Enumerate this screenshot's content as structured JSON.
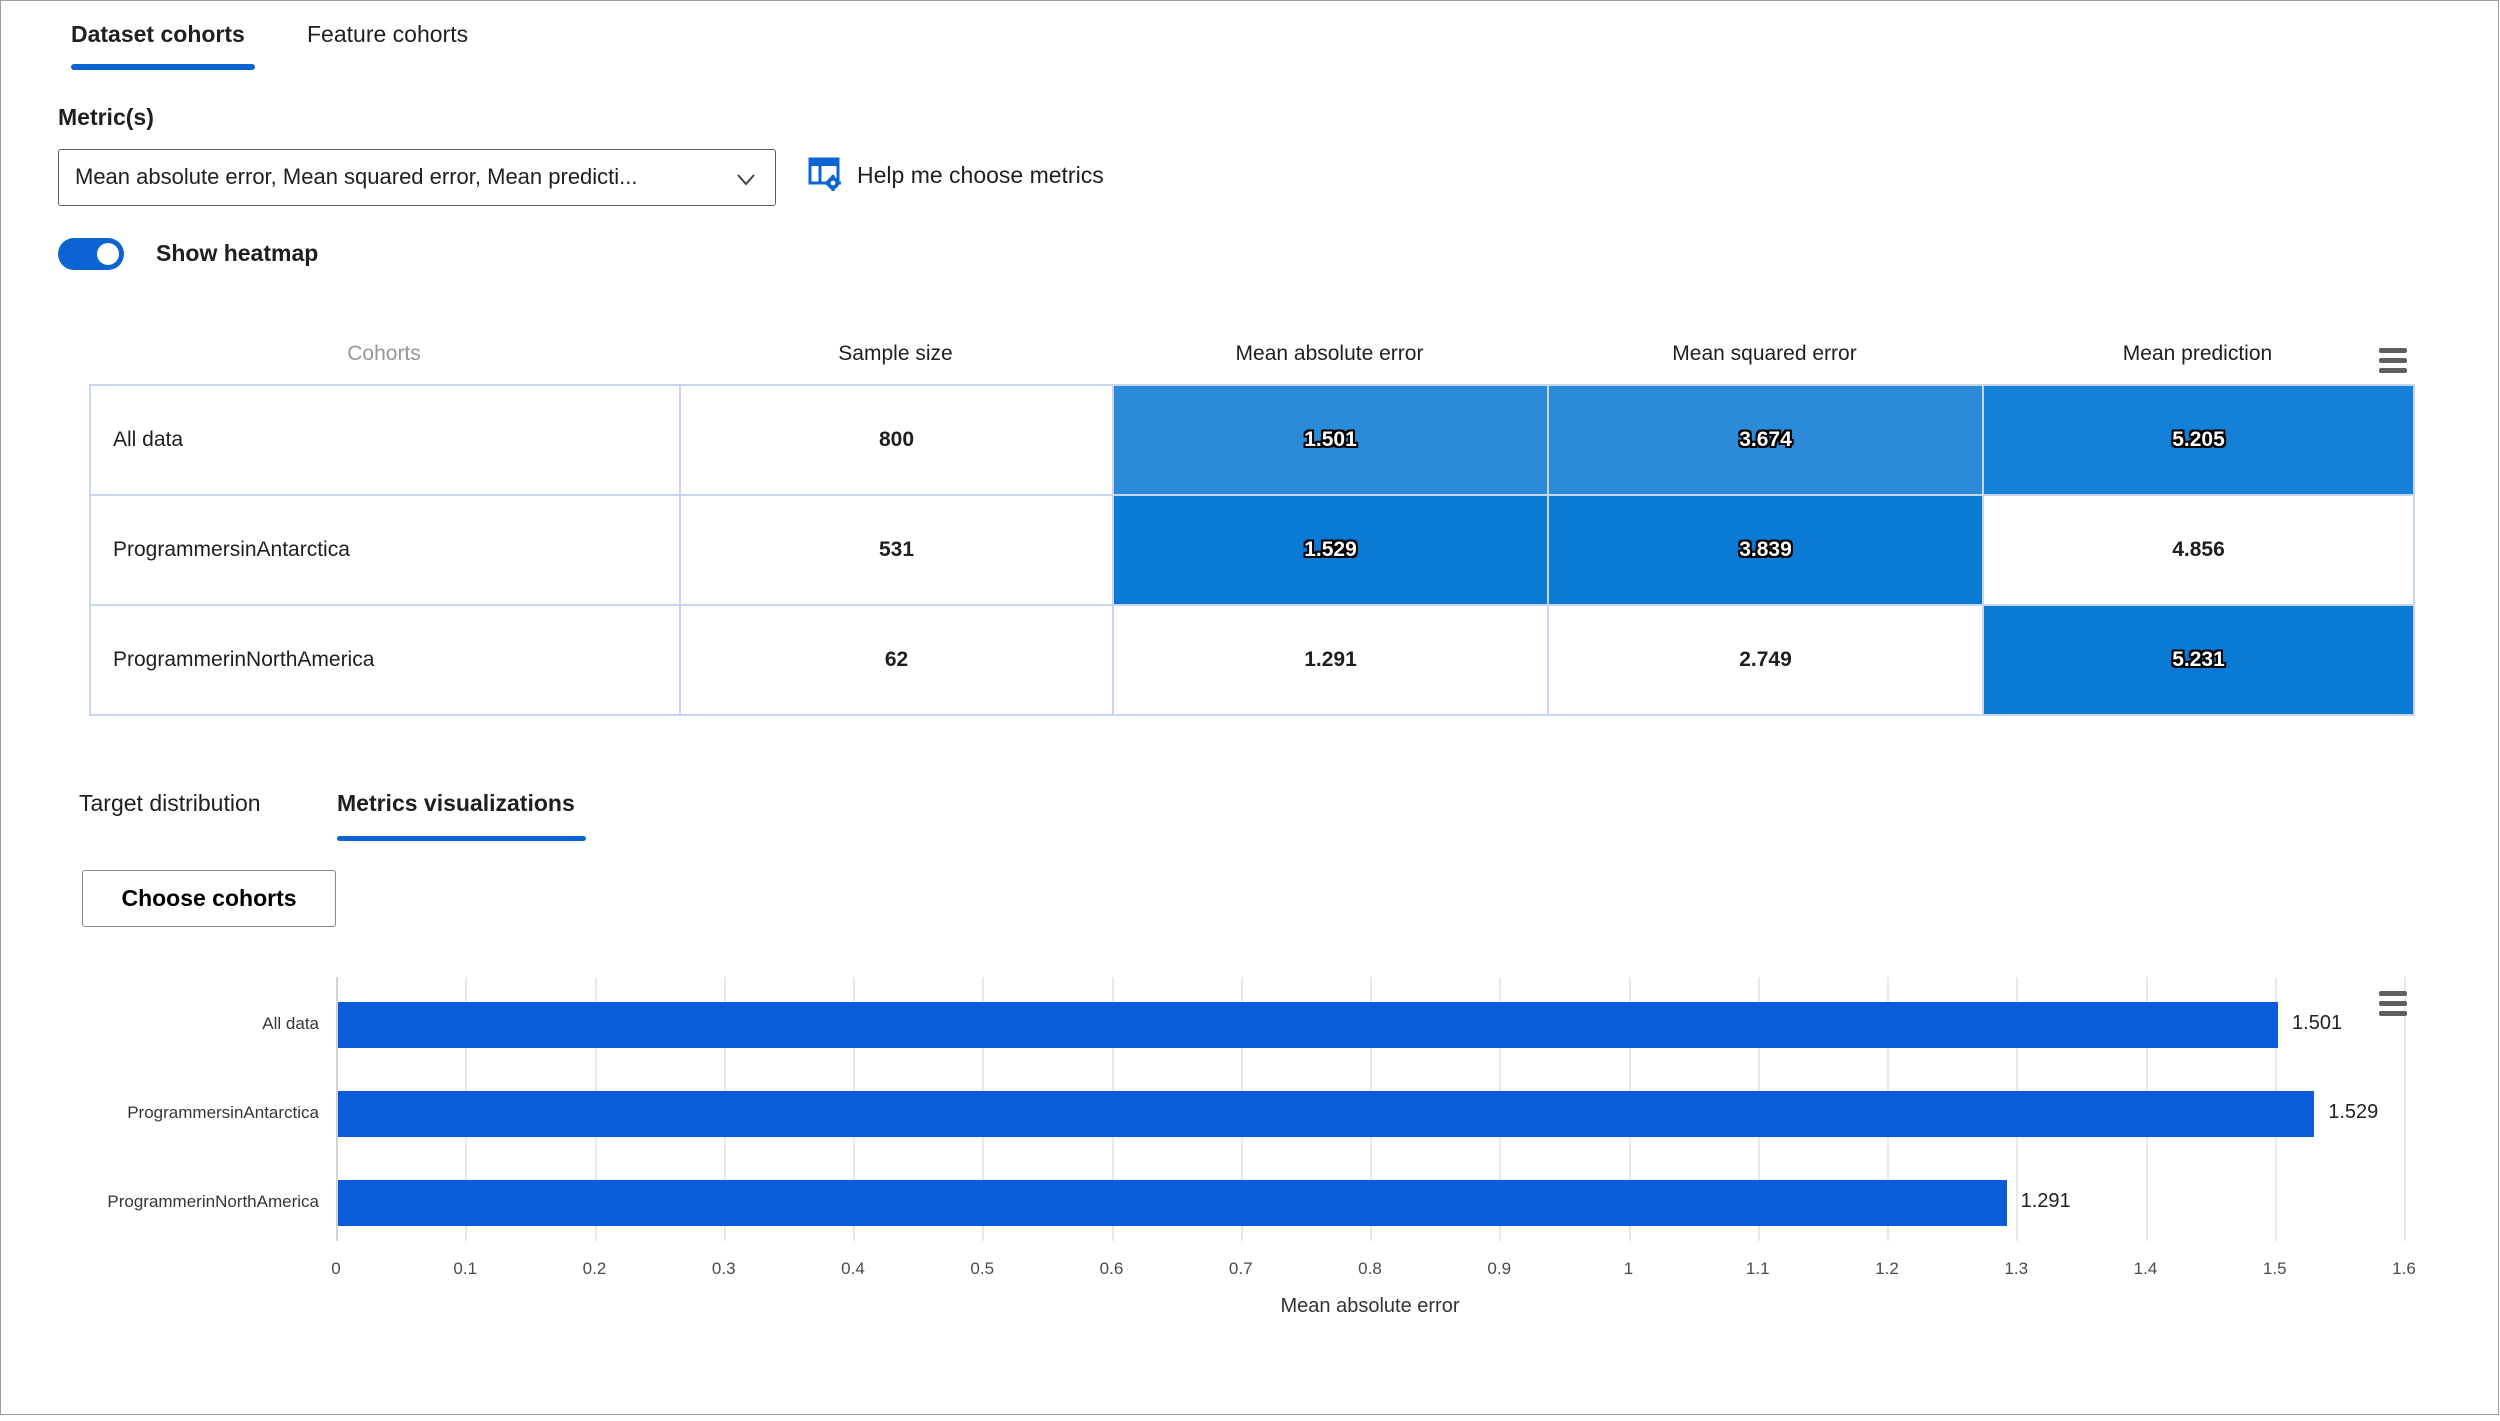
{
  "accent": "#0b64d2",
  "tabs": [
    {
      "label": "Dataset cohorts",
      "active": true
    },
    {
      "label": "Feature cohorts",
      "active": false
    }
  ],
  "metrics_section": {
    "label": "Metric(s)",
    "dropdown_value": "Mean absolute error, Mean squared error, Mean predicti...",
    "help_label": "Help me choose metrics"
  },
  "heatmap_toggle": {
    "label": "Show heatmap",
    "state": "on"
  },
  "cohort_table": {
    "headers": {
      "cohorts": "Cohorts",
      "sample_size": "Sample size",
      "mae": "Mean absolute error",
      "mse": "Mean squared error",
      "mean_pred": "Mean prediction"
    },
    "rows": [
      {
        "cohort": "All data",
        "sample_size": "800",
        "mae": {
          "value": "1.501",
          "bg": "#2b8bd8"
        },
        "mse": {
          "value": "3.674",
          "bg": "#2b8bd8"
        },
        "mean_pred": {
          "value": "5.205",
          "bg": "#1480d8"
        }
      },
      {
        "cohort": "ProgrammersinAntarctica",
        "sample_size": "531",
        "mae": {
          "value": "1.529",
          "bg": "#0a7ad4"
        },
        "mse": {
          "value": "3.839",
          "bg": "#0a7ad4"
        },
        "mean_pred": {
          "value": "4.856",
          "bg": ""
        }
      },
      {
        "cohort": "ProgrammerinNorthAmerica",
        "sample_size": "62",
        "mae": {
          "value": "1.291",
          "bg": ""
        },
        "mse": {
          "value": "2.749",
          "bg": ""
        },
        "mean_pred": {
          "value": "5.231",
          "bg": "#0a7ad4"
        }
      }
    ]
  },
  "sub_tabs": [
    {
      "label": "Target distribution",
      "active": false
    },
    {
      "label": "Metrics visualizations",
      "active": true
    }
  ],
  "choose_cohorts": {
    "label": "Choose cohorts"
  },
  "chart_data": {
    "type": "bar",
    "orientation": "horizontal",
    "title": "",
    "categories": [
      "All data",
      "ProgrammersinAntarctica",
      "ProgrammerinNorthAmerica"
    ],
    "values": [
      1.501,
      1.529,
      1.291
    ],
    "value_labels": [
      "1.501",
      "1.529",
      "1.291"
    ],
    "xlabel": "Mean absolute error",
    "ylabel": "",
    "xlim": [
      0,
      1.6
    ],
    "tick_labels": [
      "0",
      "0.1",
      "0.2",
      "0.3",
      "0.4",
      "0.5",
      "0.6",
      "0.7",
      "0.8",
      "0.9",
      "1",
      "1.1",
      "1.2",
      "1.3",
      "1.4",
      "1.5",
      "1.6"
    ],
    "bar_color": "#0b5cd9",
    "grid": true,
    "legend": false
  }
}
